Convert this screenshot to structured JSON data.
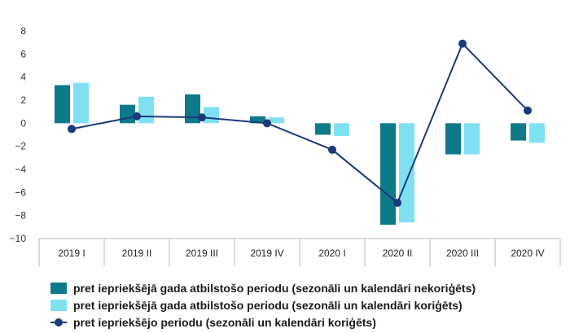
{
  "chart_data": {
    "type": "bar",
    "categories": [
      "2019 I",
      "2019 II",
      "2019 III",
      "2019 IV",
      "2020 I",
      "2020 II",
      "2020 III",
      "2020 IV"
    ],
    "series": [
      {
        "name": "pret iepriekšējā gada atbilstošo periodu (sezonāli un kalendāri nekoriģēts)",
        "kind": "bar",
        "color": "#0d7a8a",
        "values": [
          3.3,
          1.6,
          2.5,
          0.6,
          -1.0,
          -8.8,
          -2.7,
          -1.5
        ]
      },
      {
        "name": "pret iepriekšējā gada atbilstošo periodu (sezonāli un kalendāri koriģēts)",
        "kind": "bar",
        "color": "#7fe0f2",
        "values": [
          3.5,
          2.3,
          1.4,
          0.5,
          -1.1,
          -8.6,
          -2.7,
          -1.7
        ]
      },
      {
        "name": "pret iepriekšējo periodu (sezonāli un kalendāri koriģēts)",
        "kind": "line",
        "color": "#1b3a7a",
        "values": [
          -0.5,
          0.6,
          0.5,
          0.0,
          -2.3,
          -6.9,
          6.9,
          1.1
        ]
      }
    ],
    "ylim": [
      -10,
      8
    ],
    "yticks": [
      "8",
      "6",
      "4",
      "2",
      "0",
      "−2",
      "−4",
      "−6",
      "−8",
      "−10"
    ],
    "ytick_values": [
      8,
      6,
      4,
      2,
      0,
      -2,
      -4,
      -6,
      -8,
      -10
    ],
    "grid": false,
    "legend_position": "bottom"
  }
}
